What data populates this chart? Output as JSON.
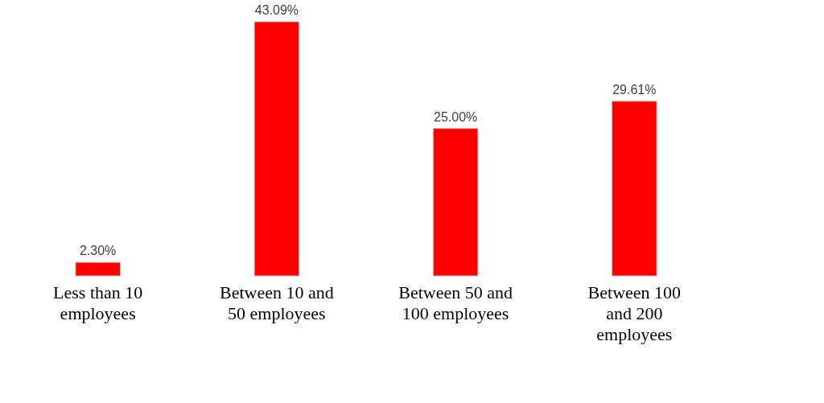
{
  "chart_data": {
    "type": "bar",
    "categories": [
      "Less than 10 employees",
      "Between 10 and 50 employees",
      "Between 50 and 100 employees",
      "Between 100 and 200 employees"
    ],
    "values": [
      2.3,
      43.09,
      25.0,
      29.61
    ],
    "value_labels": [
      "2.30%",
      "43.09%",
      "25.00%",
      "29.61%"
    ],
    "color": "#ff0000"
  }
}
